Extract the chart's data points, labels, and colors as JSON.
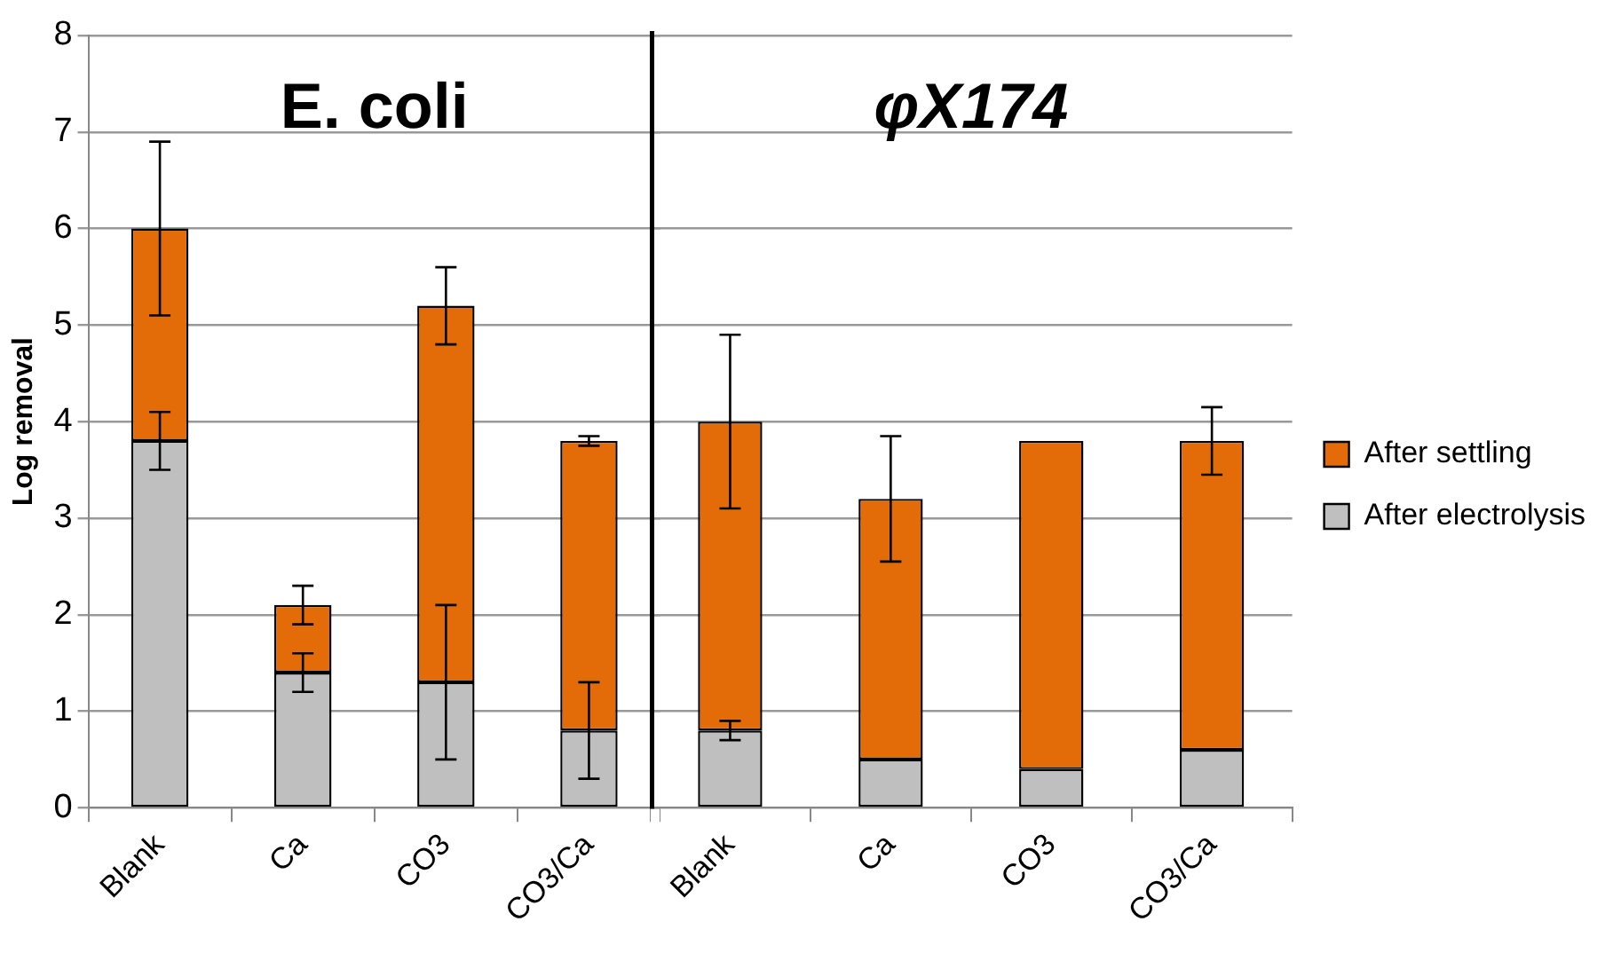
{
  "chart_data": [
    {
      "type": "bar",
      "title": "E. coli",
      "ylabel": "Log removal",
      "categories": [
        "Blank",
        "Ca",
        "CO3",
        "CO3/Ca"
      ],
      "stacked": true,
      "series": [
        {
          "color": "#bfbfbf",
          "values": [
            3.8,
            1.4,
            1.3,
            0.8
          ],
          "errors": [
            0.3,
            0.2,
            0.8,
            0.5
          ]
        },
        {
          "color": "#e36c09",
          "values": [
            2.2,
            0.7,
            3.9,
            3.0
          ],
          "errors": [
            0.9,
            0.2,
            0.4,
            0.05
          ]
        }
      ],
      "ylim": [
        0,
        8
      ],
      "yticks": [
        0,
        1,
        2,
        3,
        4,
        5,
        6,
        7,
        8
      ],
      "grid": "y",
      "legend": false
    },
    {
      "type": "bar",
      "title": "φX174",
      "categories": [
        "Blank",
        "Ca",
        "CO3",
        "CO3/Ca"
      ],
      "stacked": true,
      "series": [
        {
          "name": "After electrolysis",
          "color": "#bfbfbf",
          "values": [
            0.8,
            0.5,
            0.4,
            0.6
          ],
          "errors": [
            0.1,
            null,
            null,
            null
          ]
        },
        {
          "name": "After settling",
          "color": "#e36c09",
          "values": [
            3.2,
            2.7,
            3.4,
            3.2
          ],
          "errors": [
            0.9,
            0.65,
            null,
            0.35
          ]
        }
      ],
      "ylim": [
        0,
        8
      ],
      "yticks": [
        0,
        1,
        2,
        3,
        4,
        5,
        6,
        7,
        8
      ],
      "grid": "y",
      "legend": "right",
      "tick_labels": "x"
    }
  ]
}
